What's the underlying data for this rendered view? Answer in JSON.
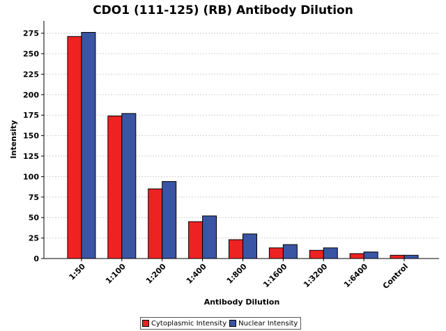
{
  "chart_data": {
    "type": "bar",
    "title": "CDO1 (111-125) (RB) Antibody Dilution",
    "xlabel": "Antibody Dilution",
    "ylabel": "Intensity",
    "categories": [
      "1:50",
      "1:100",
      "1:200",
      "1:400",
      "1:800",
      "1:1600",
      "1:3200",
      "1:6400",
      "Control"
    ],
    "series": [
      {
        "name": "Cytoplasmic Intensity",
        "color": "#ee2222",
        "values": [
          271,
          174,
          85,
          45,
          23,
          13,
          10,
          6,
          4
        ]
      },
      {
        "name": "Nuclear Intensity",
        "color": "#3a55a4",
        "values": [
          276,
          177,
          94,
          52,
          30,
          17,
          13,
          8,
          4
        ]
      }
    ],
    "ylim": [
      0,
      290
    ],
    "yticks": [
      0,
      25,
      50,
      75,
      100,
      125,
      150,
      175,
      200,
      225,
      250,
      275
    ],
    "grid": true,
    "legend_position": "bottom"
  }
}
